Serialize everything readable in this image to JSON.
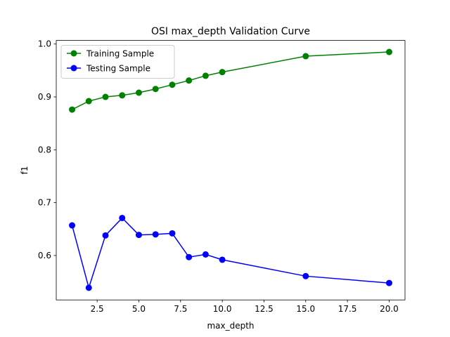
{
  "chart_data": {
    "type": "line",
    "title": "OSI max_depth Validation Curve",
    "xlabel": "max_depth",
    "ylabel": "f1",
    "xlim": [
      0.05,
      20.95
    ],
    "ylim": [
      0.516,
      1.0068
    ],
    "xticks": [
      2.5,
      5.0,
      7.5,
      10.0,
      12.5,
      15.0,
      17.5,
      20.0
    ],
    "xtick_labels": [
      "2.5",
      "5.0",
      "7.5",
      "10.0",
      "12.5",
      "15.0",
      "17.5",
      "20.0"
    ],
    "yticks": [
      0.6,
      0.7,
      0.8,
      0.9,
      1.0
    ],
    "ytick_labels": [
      "0.6",
      "0.7",
      "0.8",
      "0.9",
      "1.0"
    ],
    "grid": false,
    "legend_position": "upper-left",
    "x": [
      1,
      2,
      3,
      4,
      5,
      6,
      7,
      8,
      9,
      10,
      15,
      20
    ],
    "series": [
      {
        "name": "Training Sample",
        "color": "#008000",
        "values": [
          0.876,
          0.892,
          0.9,
          0.903,
          0.908,
          0.915,
          0.923,
          0.931,
          0.94,
          0.947,
          0.977,
          0.985
        ]
      },
      {
        "name": "Testing Sample",
        "color": "#0000ff",
        "values": [
          0.657,
          0.539,
          0.638,
          0.671,
          0.639,
          0.64,
          0.642,
          0.597,
          0.602,
          0.592,
          0.561,
          0.548
        ]
      }
    ]
  }
}
